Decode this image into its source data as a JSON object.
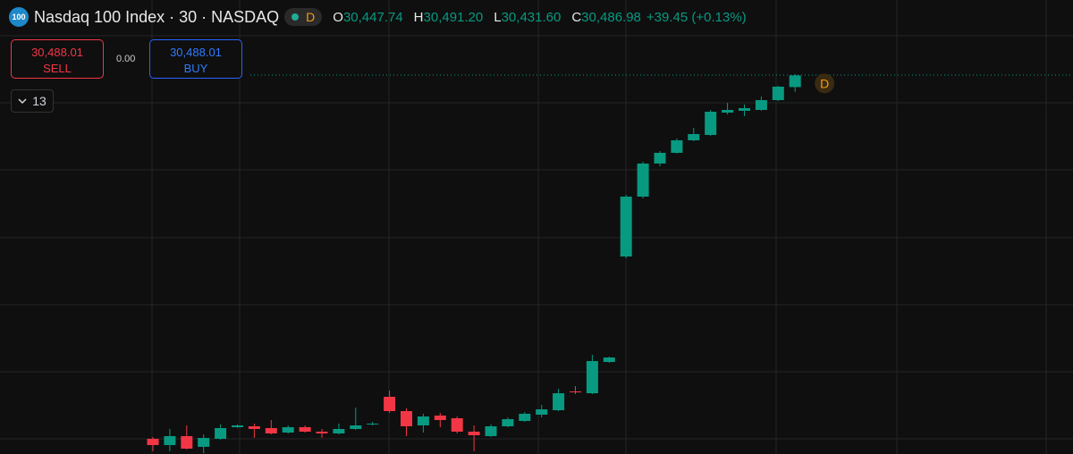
{
  "header": {
    "symbol_icon": "100",
    "title": "Nasdaq 100 Index · 30 · NASDAQ",
    "badge": "D",
    "ohlc": [
      {
        "key": "O",
        "value": "30,447.74"
      },
      {
        "key": "H",
        "value": "30,491.20"
      },
      {
        "key": "L",
        "value": "30,431.60"
      },
      {
        "key": "C",
        "value": "30,486.98"
      }
    ],
    "change": "+39.45 (+0.13%)"
  },
  "trade": {
    "sell_price": "30,488.01",
    "sell_label": "SELL",
    "spread": "0.00",
    "buy_price": "30,488.01",
    "buy_label": "BUY"
  },
  "indicators_toggle": "13",
  "chart_data": {
    "type": "candlestick",
    "ylim": [
      29216,
      30740
    ],
    "up_color": "#089981",
    "down_color": "#f23645",
    "annotation": "D",
    "open": [
      29267,
      29246,
      29276,
      29240,
      29267,
      29306,
      29309,
      29303,
      29288,
      29306,
      29291,
      29285,
      29300,
      29315,
      29408,
      29360,
      29312,
      29345,
      29336,
      29291,
      29276,
      29309,
      29327,
      29348,
      29363,
      29426,
      29420,
      29525,
      29879,
      30080,
      30191,
      30227,
      30269,
      30287,
      30362,
      30368,
      30371,
      30404,
      30447.74
    ],
    "high": [
      29273,
      29300,
      29312,
      29282,
      29315,
      29315,
      29318,
      29330,
      29312,
      29312,
      29300,
      29318,
      29372,
      29324,
      29429,
      29369,
      29351,
      29354,
      29342,
      29312,
      29315,
      29339,
      29357,
      29381,
      29435,
      29444,
      29549,
      29543,
      30086,
      30197,
      30233,
      30275,
      30311,
      30371,
      30395,
      30389,
      30416,
      30452,
      30491.2
    ],
    "low": [
      29225,
      29225,
      29231,
      29219,
      29264,
      29303,
      29270,
      29282,
      29285,
      29288,
      29270,
      29282,
      29297,
      29312,
      29354,
      29276,
      29288,
      29306,
      29285,
      29225,
      29273,
      29306,
      29324,
      29339,
      29360,
      29417,
      29417,
      29522,
      29873,
      30074,
      30182,
      30224,
      30266,
      30284,
      30356,
      30350,
      30368,
      30401,
      30431.6
    ],
    "close": [
      29246,
      29276,
      29234,
      29270,
      29303,
      29312,
      29300,
      29285,
      29306,
      29291,
      29285,
      29300,
      29312,
      29318,
      29360,
      29309,
      29342,
      29330,
      29291,
      29279,
      29309,
      29333,
      29351,
      29366,
      29420,
      29423,
      29528,
      29540,
      30080,
      30191,
      30227,
      30269,
      30290,
      30365,
      30371,
      30377,
      30404,
      30449,
      30486.98
    ]
  }
}
